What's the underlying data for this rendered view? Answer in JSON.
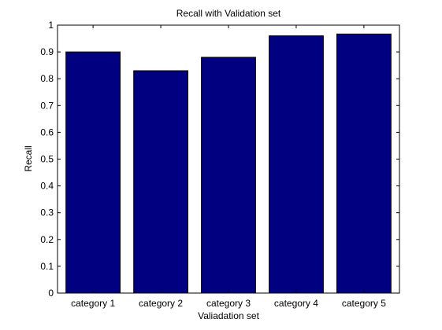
{
  "figure": {
    "background": "#ffffff"
  },
  "chart_data": {
    "type": "bar",
    "title": "Recall with Validation set",
    "xlabel": "Valiadation set",
    "ylabel": "Recall",
    "categories": [
      "category 1",
      "category 2",
      "category 3",
      "category 4",
      "category 5"
    ],
    "values": [
      0.9,
      0.83,
      0.88,
      0.96,
      0.967
    ],
    "ylim": [
      0,
      1
    ],
    "yticks": [
      "0",
      "0.1",
      "0.2",
      "0.3",
      "0.4",
      "0.5",
      "0.6",
      "0.7",
      "0.8",
      "0.9",
      "1"
    ],
    "bar_color": "#000080",
    "bar_edge_color": "#000000",
    "grid": false,
    "legend": false
  }
}
